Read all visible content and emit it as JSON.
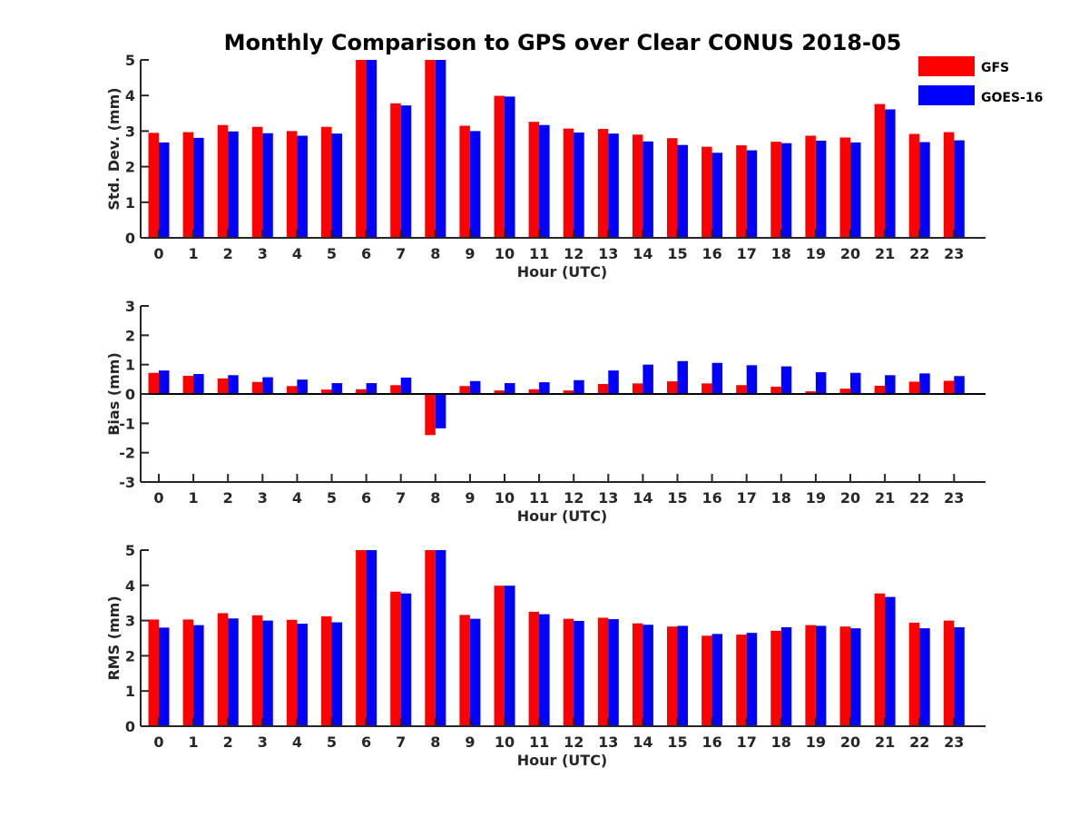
{
  "title": "Monthly Comparison to GPS over Clear CONUS 2018-05",
  "legend": [
    {
      "name": "GFS",
      "color": "#ff0000"
    },
    {
      "name": "GOES-16",
      "color": "#0000ff"
    }
  ],
  "chart_data": [
    {
      "type": "bar",
      "title": "Monthly Comparison to GPS over Clear CONUS 2018-05",
      "xlabel": "Hour (UTC)",
      "ylabel": "Std. Dev. (mm)",
      "ylim": [
        0,
        5
      ],
      "yticks": [
        0,
        1,
        2,
        3,
        4,
        5
      ],
      "categories": [
        "0",
        "1",
        "2",
        "3",
        "4",
        "5",
        "6",
        "7",
        "8",
        "9",
        "10",
        "11",
        "12",
        "13",
        "14",
        "15",
        "16",
        "17",
        "18",
        "19",
        "20",
        "21",
        "22",
        "23"
      ],
      "legend_position": "top-right",
      "series": [
        {
          "name": "GFS",
          "color": "#ff0000",
          "values": [
            2.95,
            2.97,
            3.17,
            3.12,
            3.0,
            3.12,
            5.0,
            3.78,
            5.0,
            3.15,
            3.99,
            3.26,
            3.07,
            3.06,
            2.9,
            2.8,
            2.56,
            2.6,
            2.7,
            2.87,
            2.82,
            3.76,
            2.92,
            2.97
          ]
        },
        {
          "name": "GOES-16",
          "color": "#0000ff",
          "values": [
            2.68,
            2.81,
            2.99,
            2.94,
            2.87,
            2.93,
            5.0,
            3.72,
            5.0,
            3.0,
            3.97,
            3.17,
            2.96,
            2.93,
            2.71,
            2.61,
            2.39,
            2.46,
            2.66,
            2.73,
            2.68,
            3.61,
            2.69,
            2.74
          ]
        }
      ]
    },
    {
      "type": "bar",
      "xlabel": "Hour (UTC)",
      "ylabel": "Bias (mm)",
      "ylim": [
        -3,
        3
      ],
      "yticks": [
        -3,
        -2,
        -1,
        0,
        1,
        2,
        3
      ],
      "categories": [
        "0",
        "1",
        "2",
        "3",
        "4",
        "5",
        "6",
        "7",
        "8",
        "9",
        "10",
        "11",
        "12",
        "13",
        "14",
        "15",
        "16",
        "17",
        "18",
        "19",
        "20",
        "21",
        "22",
        "23"
      ],
      "series": [
        {
          "name": "GFS",
          "color": "#ff0000",
          "values": [
            0.72,
            0.62,
            0.53,
            0.41,
            0.27,
            0.15,
            0.16,
            0.3,
            -1.4,
            0.27,
            0.12,
            0.16,
            0.12,
            0.34,
            0.36,
            0.43,
            0.36,
            0.3,
            0.25,
            0.09,
            0.18,
            0.28,
            0.42,
            0.45
          ]
        },
        {
          "name": "GOES-16",
          "color": "#0000ff",
          "values": [
            0.8,
            0.68,
            0.64,
            0.57,
            0.49,
            0.37,
            0.37,
            0.56,
            -1.17,
            0.44,
            0.37,
            0.4,
            0.47,
            0.8,
            1.0,
            1.12,
            1.06,
            0.98,
            0.94,
            0.74,
            0.72,
            0.64,
            0.7,
            0.61
          ]
        }
      ]
    },
    {
      "type": "bar",
      "xlabel": "Hour (UTC)",
      "ylabel": "RMS (mm)",
      "ylim": [
        0,
        5
      ],
      "yticks": [
        0,
        1,
        2,
        3,
        4,
        5
      ],
      "categories": [
        "0",
        "1",
        "2",
        "3",
        "4",
        "5",
        "6",
        "7",
        "8",
        "9",
        "10",
        "11",
        "12",
        "13",
        "14",
        "15",
        "16",
        "17",
        "18",
        "19",
        "20",
        "21",
        "22",
        "23"
      ],
      "series": [
        {
          "name": "GFS",
          "color": "#ff0000",
          "values": [
            3.03,
            3.03,
            3.21,
            3.15,
            3.02,
            3.12,
            5.0,
            3.82,
            5.0,
            3.16,
            3.99,
            3.25,
            3.05,
            3.08,
            2.92,
            2.83,
            2.57,
            2.6,
            2.71,
            2.87,
            2.83,
            3.77,
            2.94,
            3.0
          ]
        },
        {
          "name": "GOES-16",
          "color": "#0000ff",
          "values": [
            2.8,
            2.87,
            3.06,
            3.0,
            2.91,
            2.95,
            5.0,
            3.77,
            5.0,
            3.05,
            3.99,
            3.18,
            2.99,
            3.04,
            2.88,
            2.85,
            2.62,
            2.65,
            2.81,
            2.85,
            2.78,
            3.67,
            2.78,
            2.81
          ]
        }
      ]
    }
  ]
}
